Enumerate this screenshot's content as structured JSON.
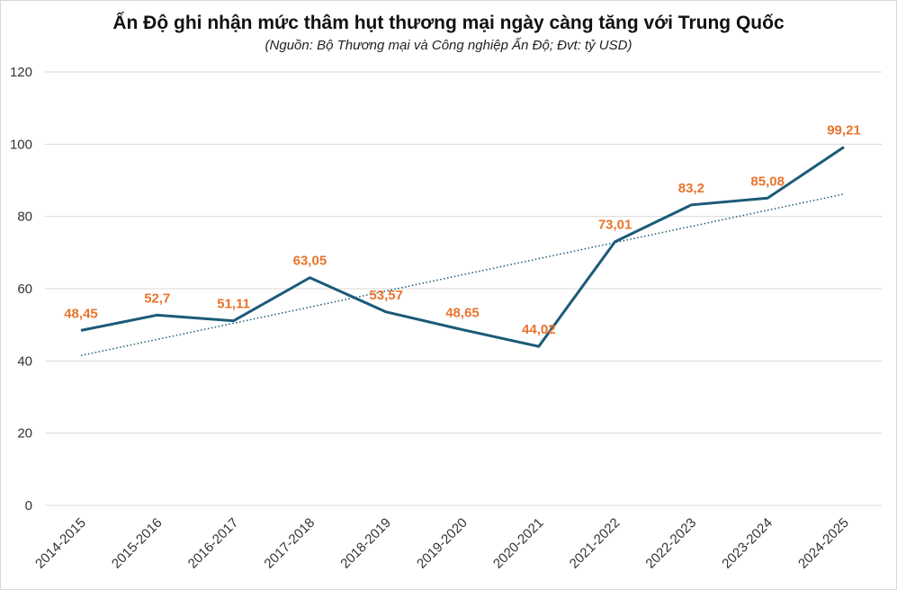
{
  "chart_data": {
    "type": "line",
    "title": "Ấn Độ ghi nhận mức thâm hụt thương mại ngày càng tăng với Trung Quốc",
    "subtitle": "(Nguồn: Bộ Thương mại và Công nghiệp Ấn Độ; Đvt: tỷ USD)",
    "xlabel": "",
    "ylabel": "",
    "ylim": [
      0,
      120
    ],
    "yticks": [
      0,
      20,
      40,
      60,
      80,
      100,
      120
    ],
    "grid": true,
    "categories": [
      "2014-2015",
      "2015-2016",
      "2016-2017",
      "2017-2018",
      "2018-2019",
      "2019-2020",
      "2020-2021",
      "2021-2022",
      "2022-2023",
      "2023-2024",
      "2024-2025"
    ],
    "series": [
      {
        "name": "Thâm hụt thương mại",
        "values": [
          48.45,
          52.7,
          51.11,
          63.05,
          53.57,
          48.65,
          44.02,
          73.01,
          83.2,
          85.08,
          99.21
        ],
        "labels": [
          "48,45",
          "52,7",
          "51,11",
          "63,05",
          "53,57",
          "48,65",
          "44,02",
          "73,01",
          "83,2",
          "85,08",
          "99,21"
        ],
        "color": "#1b5a78"
      }
    ],
    "trendline": {
      "type": "linear",
      "start": 41.5,
      "end": 86.2,
      "color": "#1b5a78",
      "style": "dotted"
    },
    "label_color": "#e8742c"
  }
}
